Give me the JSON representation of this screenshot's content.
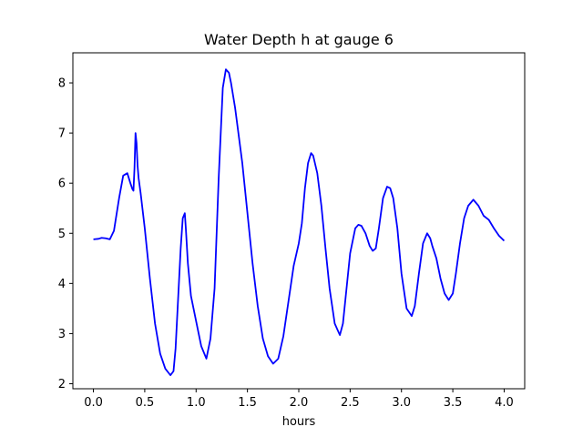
{
  "chart_data": {
    "type": "line",
    "title": "Water Depth h at gauge 6",
    "xlabel": "hours",
    "ylabel": "",
    "xlim": [
      -0.2,
      4.2
    ],
    "ylim": [
      1.9,
      8.6
    ],
    "xticks": [
      0.0,
      0.5,
      1.0,
      1.5,
      2.0,
      2.5,
      3.0,
      3.5,
      4.0
    ],
    "xtick_labels": [
      "0.0",
      "0.5",
      "1.0",
      "1.5",
      "2.0",
      "2.5",
      "3.0",
      "3.5",
      "4.0"
    ],
    "yticks": [
      2,
      3,
      4,
      5,
      6,
      7,
      8
    ],
    "ytick_labels": [
      "2",
      "3",
      "4",
      "5",
      "6",
      "7",
      "8"
    ],
    "grid": false,
    "series": [
      {
        "color": "#0000ff",
        "x": [
          0.0,
          0.05,
          0.08,
          0.12,
          0.16,
          0.2,
          0.25,
          0.29,
          0.33,
          0.36,
          0.38,
          0.39,
          0.4,
          0.41,
          0.42,
          0.43,
          0.44,
          0.46,
          0.5,
          0.55,
          0.6,
          0.65,
          0.7,
          0.75,
          0.78,
          0.8,
          0.82,
          0.85,
          0.87,
          0.89,
          0.9,
          0.92,
          0.95,
          1.0,
          1.05,
          1.1,
          1.14,
          1.18,
          1.22,
          1.26,
          1.29,
          1.32,
          1.34,
          1.38,
          1.45,
          1.5,
          1.55,
          1.6,
          1.65,
          1.7,
          1.75,
          1.8,
          1.85,
          1.9,
          1.95,
          2.0,
          2.03,
          2.06,
          2.09,
          2.12,
          2.14,
          2.18,
          2.22,
          2.26,
          2.3,
          2.35,
          2.4,
          2.43,
          2.47,
          2.5,
          2.55,
          2.58,
          2.61,
          2.65,
          2.69,
          2.72,
          2.75,
          2.78,
          2.82,
          2.86,
          2.89,
          2.92,
          2.96,
          3.0,
          3.05,
          3.1,
          3.13,
          3.17,
          3.21,
          3.25,
          3.28,
          3.3,
          3.34,
          3.38,
          3.42,
          3.46,
          3.5,
          3.53,
          3.57,
          3.61,
          3.65,
          3.7,
          3.75,
          3.8,
          3.85,
          3.9,
          3.95,
          4.0
        ],
        "y": [
          4.88,
          4.89,
          4.91,
          4.9,
          4.88,
          5.05,
          5.7,
          6.15,
          6.2,
          6.0,
          5.88,
          5.85,
          6.3,
          7.0,
          6.8,
          6.35,
          6.1,
          5.8,
          5.1,
          4.1,
          3.2,
          2.6,
          2.3,
          2.17,
          2.25,
          2.7,
          3.5,
          4.7,
          5.3,
          5.4,
          5.1,
          4.4,
          3.75,
          3.25,
          2.75,
          2.5,
          2.9,
          3.9,
          6.1,
          7.9,
          8.27,
          8.2,
          8.0,
          7.5,
          6.4,
          5.4,
          4.4,
          3.55,
          2.9,
          2.55,
          2.4,
          2.5,
          2.95,
          3.65,
          4.35,
          4.8,
          5.2,
          5.9,
          6.4,
          6.6,
          6.55,
          6.2,
          5.55,
          4.7,
          3.9,
          3.2,
          2.97,
          3.2,
          4.0,
          4.6,
          5.1,
          5.17,
          5.15,
          5.0,
          4.75,
          4.65,
          4.7,
          5.1,
          5.7,
          5.93,
          5.9,
          5.7,
          5.1,
          4.2,
          3.5,
          3.35,
          3.55,
          4.2,
          4.8,
          5.0,
          4.9,
          4.75,
          4.5,
          4.1,
          3.8,
          3.67,
          3.8,
          4.2,
          4.8,
          5.3,
          5.55,
          5.67,
          5.55,
          5.35,
          5.27,
          5.1,
          4.95,
          4.85
        ]
      }
    ]
  }
}
